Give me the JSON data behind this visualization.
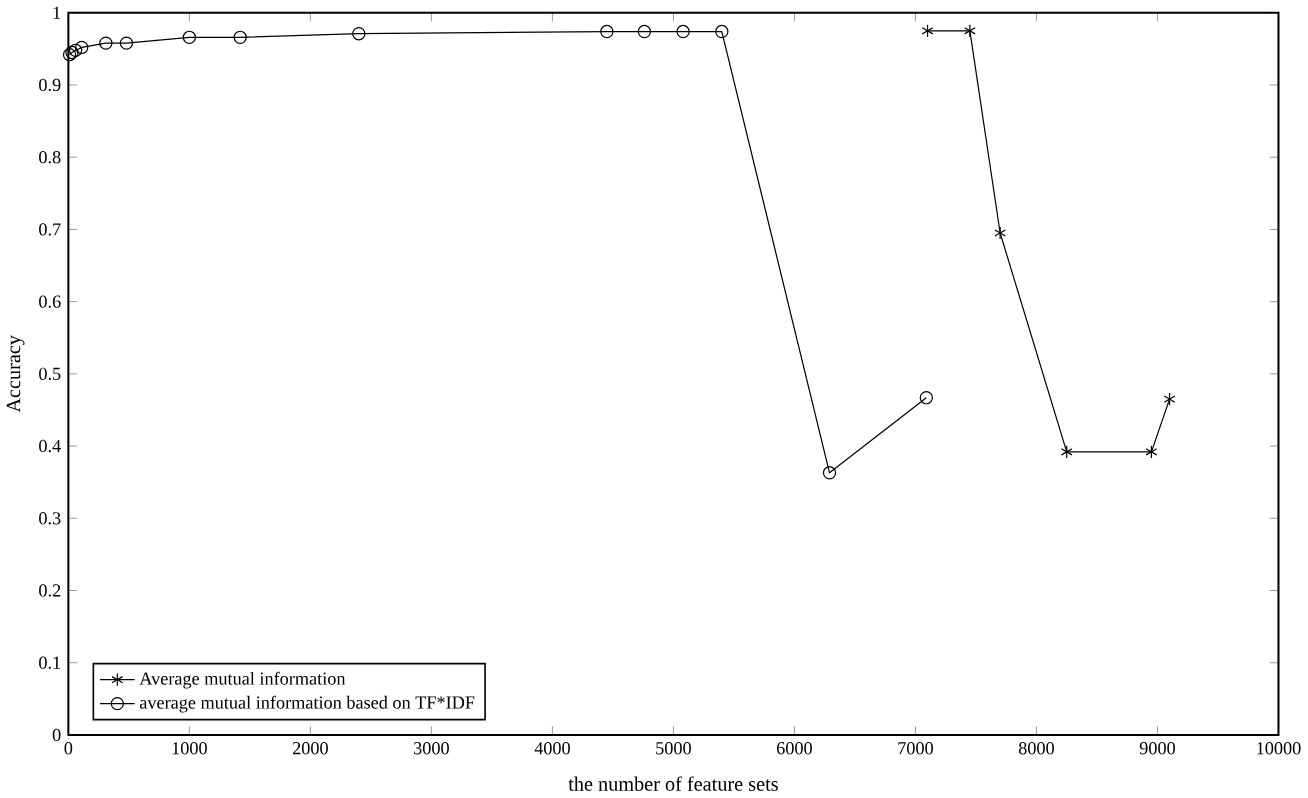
{
  "chart_data": {
    "type": "line",
    "xlabel": "the number of feature sets",
    "ylabel": "Accuracy",
    "xlim": [
      0,
      10000
    ],
    "ylim": [
      0,
      1
    ],
    "xticks": [
      0,
      1000,
      2000,
      3000,
      4000,
      5000,
      6000,
      7000,
      8000,
      9000,
      10000
    ],
    "yticks": [
      0,
      0.1,
      0.2,
      0.3,
      0.4,
      0.5,
      0.6,
      0.7,
      0.8,
      0.9,
      1
    ],
    "legend": "bottom left",
    "grid": false,
    "series": [
      {
        "name": "Average mutual information",
        "color": "#000000",
        "marker": "cross",
        "x": [
          7100,
          7450,
          7700,
          8250,
          8950,
          9100
        ],
        "values": [
          0.975,
          0.975,
          0.695,
          0.392,
          0.392,
          0.465
        ]
      },
      {
        "name": "average mutual information based on TF*IDF",
        "color": "#000000",
        "marker": "circle",
        "x": [
          10,
          30,
          60,
          110,
          310,
          480,
          1000,
          1420,
          2400,
          4450,
          4760,
          5080,
          5400,
          6290,
          7090
        ],
        "values": [
          0.942,
          0.945,
          0.948,
          0.952,
          0.958,
          0.958,
          0.966,
          0.966,
          0.971,
          0.974,
          0.974,
          0.974,
          0.974,
          0.363,
          0.467
        ]
      }
    ]
  }
}
